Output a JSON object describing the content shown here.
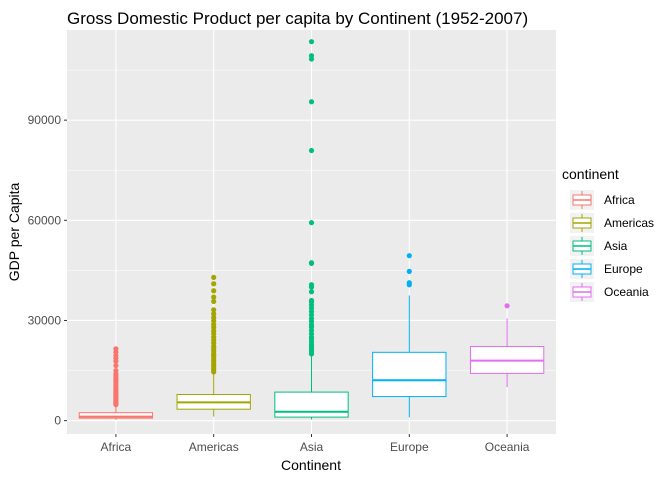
{
  "chart_data": {
    "type": "boxplot",
    "title": "Gross Domestic Product per capita by Continent (1952-2007)",
    "xlabel": "Continent",
    "ylabel": "GDP per Capita",
    "ylim": [
      -4000,
      117000
    ],
    "y_ticks": [
      0,
      30000,
      60000,
      90000
    ],
    "y_tick_labels": [
      "0",
      "30000",
      "60000",
      "90000"
    ],
    "grid": true,
    "legend_title": "continent",
    "legend_position": "right",
    "categories": [
      "Africa",
      "Americas",
      "Asia",
      "Europe",
      "Oceania"
    ],
    "series": [
      {
        "name": "Africa",
        "color": "#F8766D",
        "min": 241,
        "q1": 761,
        "median": 1192,
        "q3": 2377,
        "max": 4695,
        "outliers": [
          4800,
          5100,
          5400,
          5700,
          6000,
          6300,
          6700,
          7000,
          7400,
          7800,
          8200,
          8700,
          9300,
          9800,
          10300,
          11000,
          11700,
          12300,
          12800,
          13400,
          14000,
          15000,
          16500,
          17800,
          18700,
          19500,
          20500,
          21500
        ]
      },
      {
        "name": "Americas",
        "color": "#A3A500",
        "min": 1202,
        "q1": 3428,
        "median": 5466,
        "q3": 7830,
        "max": 14300,
        "outliers": [
          14600,
          15200,
          15800,
          16500,
          17000,
          17800,
          18300,
          19000,
          19600,
          20100,
          20900,
          21600,
          22300,
          23200,
          24100,
          25000,
          26000,
          26900,
          27900,
          28800,
          29900,
          30900,
          32000,
          33200,
          35700,
          37000,
          38900,
          41000,
          42900
        ]
      },
      {
        "name": "Asia",
        "color": "#00BF7D",
        "min": 331,
        "q1": 1057,
        "median": 2647,
        "q3": 8549,
        "max": 19200,
        "outliers": [
          20000,
          20700,
          21300,
          22000,
          22700,
          23500,
          24300,
          25000,
          26000,
          27000,
          28000,
          28700,
          29700,
          30600,
          31700,
          32700,
          33700,
          34600,
          35500,
          36000,
          38600,
          40000,
          40700,
          47100,
          47300,
          59300,
          80900,
          95500,
          108300,
          109300,
          113500
        ]
      },
      {
        "name": "Europe",
        "color": "#00B0F6",
        "min": 974,
        "q1": 7213,
        "median": 12082,
        "q3": 20461,
        "max": 37500,
        "outliers": [
          40700,
          41300,
          44700,
          49400
        ]
      },
      {
        "name": "Oceania",
        "color": "#E76BF3",
        "min": 10040,
        "q1": 14142,
        "median": 17983,
        "q3": 22214,
        "max": 30600,
        "outliers": [
          34400
        ]
      }
    ]
  }
}
